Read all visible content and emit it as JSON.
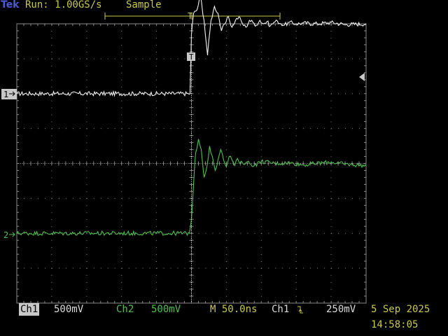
{
  "header": {
    "brand": "Tek",
    "run_status": "Run: 1.00GS/s",
    "acq_mode": "Sample"
  },
  "markers": {
    "trigger_time": "T",
    "trigger_point": "T",
    "ch1": "1",
    "ch2": "2"
  },
  "footer": {
    "ch1_label": "Ch1",
    "ch1_scale": "500mV",
    "ch2_label": "Ch2",
    "ch2_scale": "500mV",
    "timebase": "M 50.0ns",
    "trigger_source": "Ch1",
    "trigger_slope": "rising-edge-icon",
    "trigger_level": "250mV",
    "date": "5 Sep 2025",
    "time": "14:58:05"
  },
  "colors": {
    "ch1": "#f2f2f2",
    "ch2": "#50c050",
    "accent": "#c9c94a",
    "brand": "#4b5bd6",
    "graticule": "#8a8a8a"
  },
  "chart_data": {
    "type": "line",
    "title": "",
    "xlabel": "",
    "ylabel": "",
    "x_unit": "ns",
    "y_unit": "V",
    "xlim": [
      -250,
      250
    ],
    "ylim": [
      -2.0,
      2.0
    ],
    "x_divisions": 10,
    "y_divisions": 8,
    "grid": true,
    "trigger_time": 0,
    "series": [
      {
        "name": "Ch1",
        "color": "#f2f2f2",
        "ground_level_v": 1.0,
        "volts_per_div": 0.5,
        "x": [
          -250,
          -2,
          0,
          3,
          8,
          13,
          18,
          23,
          28,
          33,
          38,
          43,
          48,
          53,
          58,
          63,
          68,
          73,
          78,
          83,
          88,
          93,
          98,
          103,
          108,
          113,
          118,
          123,
          128,
          133,
          140,
          150,
          160,
          180,
          200,
          220,
          250
        ],
        "values": [
          0.0,
          0.0,
          0.85,
          1.15,
          1.2,
          1.4,
          1.05,
          0.55,
          1.05,
          1.25,
          1.15,
          0.9,
          1.0,
          1.1,
          0.95,
          1.05,
          1.1,
          1.0,
          0.95,
          1.05,
          1.02,
          0.98,
          1.05,
          1.0,
          1.03,
          0.97,
          1.02,
          1.04,
          1.0,
          0.98,
          1.02,
          1.0,
          1.01,
          1.0,
          1.02,
          0.99,
          1.0
        ]
      },
      {
        "name": "Ch2",
        "color": "#50c050",
        "ground_level_v": -1.0,
        "volts_per_div": 0.5,
        "x": [
          -250,
          -3,
          0,
          3,
          6,
          10,
          14,
          18,
          22,
          26,
          30,
          34,
          38,
          42,
          46,
          50,
          54,
          58,
          62,
          66,
          70,
          80,
          90,
          100,
          120,
          140,
          160,
          180,
          200,
          220,
          250
        ],
        "values": [
          0.0,
          0.0,
          0.2,
          0.7,
          1.15,
          1.35,
          1.2,
          0.8,
          0.95,
          1.25,
          1.1,
          0.9,
          1.05,
          1.2,
          1.05,
          0.95,
          1.1,
          1.05,
          0.97,
          1.07,
          1.0,
          1.02,
          0.97,
          1.03,
          1.0,
          1.01,
          0.98,
          1.0,
          1.02,
          0.99,
          0.97
        ]
      }
    ]
  }
}
